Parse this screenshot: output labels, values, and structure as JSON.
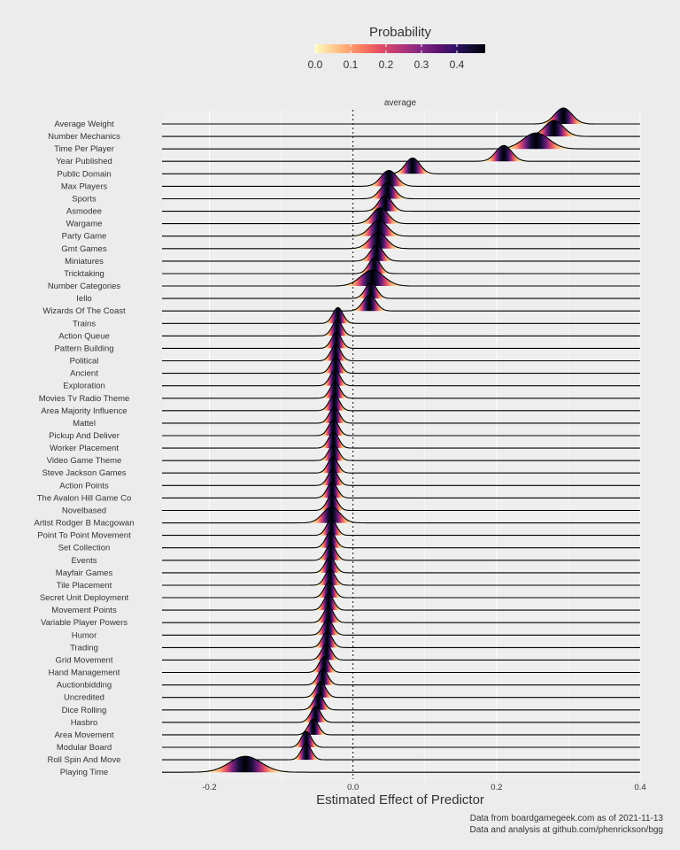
{
  "legend": {
    "title": "Probability",
    "ticks": [
      "0.0",
      "0.1",
      "0.2",
      "0.3",
      "0.4"
    ],
    "tick_values": [
      0,
      0.1,
      0.2,
      0.3,
      0.4
    ],
    "max": 0.48
  },
  "strip_label": "average",
  "caption": {
    "line1": "Data from boardgamegeek.com as of 2021-11-13",
    "line2": "Data and analysis at github.com/phenrickson/bgg"
  },
  "colors": {
    "background": "#ececec",
    "panel": "#eeeeee",
    "grid": "#ffffff",
    "palette": [
      "#fcfdbf",
      "#fed395",
      "#fea973",
      "#fa7d5e",
      "#e95462",
      "#c83e73",
      "#a3307e",
      "#7e2482",
      "#5c126e",
      "#35106a",
      "#150e37",
      "#000004"
    ]
  },
  "chart_data": {
    "type": "ridgeline",
    "x_label": "Estimated Effect of Predictor",
    "x_ticks": [
      "-0.2",
      "0.0",
      "0.2",
      "0.4"
    ],
    "x_tick_values": [
      -0.2,
      0.0,
      0.2,
      0.4
    ],
    "xlim": [
      -0.266,
      0.4
    ],
    "reference_line": 0.0,
    "predictors": [
      {
        "name": "Average Weight",
        "mean": 0.293,
        "sd": 0.012
      },
      {
        "name": "Number Mechanics",
        "mean": 0.28,
        "sd": 0.013
      },
      {
        "name": "Time Per Player",
        "mean": 0.255,
        "sd": 0.018
      },
      {
        "name": "Year Published",
        "mean": 0.21,
        "sd": 0.011
      },
      {
        "name": "Public Domain",
        "mean": 0.083,
        "sd": 0.01
      },
      {
        "name": "Max Players",
        "mean": 0.05,
        "sd": 0.011
      },
      {
        "name": "Sports",
        "mean": 0.048,
        "sd": 0.01
      },
      {
        "name": "Asmodee",
        "mean": 0.045,
        "sd": 0.009
      },
      {
        "name": "Wargame",
        "mean": 0.038,
        "sd": 0.011
      },
      {
        "name": "Party Game",
        "mean": 0.036,
        "sd": 0.012
      },
      {
        "name": "Gmt Games",
        "mean": 0.035,
        "sd": 0.012
      },
      {
        "name": "Miniatures",
        "mean": 0.033,
        "sd": 0.009
      },
      {
        "name": "Tricktaking",
        "mean": 0.03,
        "sd": 0.008
      },
      {
        "name": "Number Categories",
        "mean": 0.027,
        "sd": 0.016
      },
      {
        "name": "Iello",
        "mean": 0.025,
        "sd": 0.008
      },
      {
        "name": "Wizards Of The Coast",
        "mean": 0.023,
        "sd": 0.009
      },
      {
        "name": "Trains",
        "mean": -0.021,
        "sd": 0.007
      },
      {
        "name": "Action Queue",
        "mean": -0.022,
        "sd": 0.007
      },
      {
        "name": "Pattern Building",
        "mean": -0.023,
        "sd": 0.007
      },
      {
        "name": "Political",
        "mean": -0.024,
        "sd": 0.007
      },
      {
        "name": "Ancient",
        "mean": -0.024,
        "sd": 0.007
      },
      {
        "name": "Exploration",
        "mean": -0.025,
        "sd": 0.007
      },
      {
        "name": "Movies Tv Radio Theme",
        "mean": -0.025,
        "sd": 0.007
      },
      {
        "name": "Area Majority Influence",
        "mean": -0.026,
        "sd": 0.007
      },
      {
        "name": "Mattel",
        "mean": -0.026,
        "sd": 0.007
      },
      {
        "name": "Pickup And Deliver",
        "mean": -0.027,
        "sd": 0.007
      },
      {
        "name": "Worker Placement",
        "mean": -0.027,
        "sd": 0.007
      },
      {
        "name": "Video Game Theme",
        "mean": -0.027,
        "sd": 0.007
      },
      {
        "name": "Steve Jackson Games",
        "mean": -0.028,
        "sd": 0.007
      },
      {
        "name": "Action Points",
        "mean": -0.028,
        "sd": 0.007
      },
      {
        "name": "The Avalon Hill Game Co",
        "mean": -0.029,
        "sd": 0.007
      },
      {
        "name": "Novelbased",
        "mean": -0.029,
        "sd": 0.007
      },
      {
        "name": "Artist Rodger B Macgowan",
        "mean": -0.03,
        "sd": 0.012
      },
      {
        "name": "Point To Point Movement",
        "mean": -0.03,
        "sd": 0.007
      },
      {
        "name": "Set Collection",
        "mean": -0.031,
        "sd": 0.007
      },
      {
        "name": "Events",
        "mean": -0.031,
        "sd": 0.007
      },
      {
        "name": "Mayfair Games",
        "mean": -0.032,
        "sd": 0.007
      },
      {
        "name": "Tile Placement",
        "mean": -0.032,
        "sd": 0.007
      },
      {
        "name": "Secret Unit Deployment",
        "mean": -0.033,
        "sd": 0.007
      },
      {
        "name": "Movement Points",
        "mean": -0.034,
        "sd": 0.007
      },
      {
        "name": "Variable Player Powers",
        "mean": -0.034,
        "sd": 0.007
      },
      {
        "name": "Humor",
        "mean": -0.035,
        "sd": 0.007
      },
      {
        "name": "Trading",
        "mean": -0.036,
        "sd": 0.007
      },
      {
        "name": "Grid Movement",
        "mean": -0.037,
        "sd": 0.007
      },
      {
        "name": "Hand Management",
        "mean": -0.04,
        "sd": 0.007
      },
      {
        "name": "Auctionbidding",
        "mean": -0.042,
        "sd": 0.007
      },
      {
        "name": "Uncredited",
        "mean": -0.045,
        "sd": 0.007
      },
      {
        "name": "Dice Rolling",
        "mean": -0.048,
        "sd": 0.007
      },
      {
        "name": "Hasbro",
        "mean": -0.052,
        "sd": 0.007
      },
      {
        "name": "Area Movement",
        "mean": -0.055,
        "sd": 0.007
      },
      {
        "name": "Modular Board",
        "mean": -0.065,
        "sd": 0.007
      },
      {
        "name": "Roll Spin And Move",
        "mean": -0.065,
        "sd": 0.007
      },
      {
        "name": "Playing Time",
        "mean": -0.15,
        "sd": 0.022
      }
    ]
  }
}
